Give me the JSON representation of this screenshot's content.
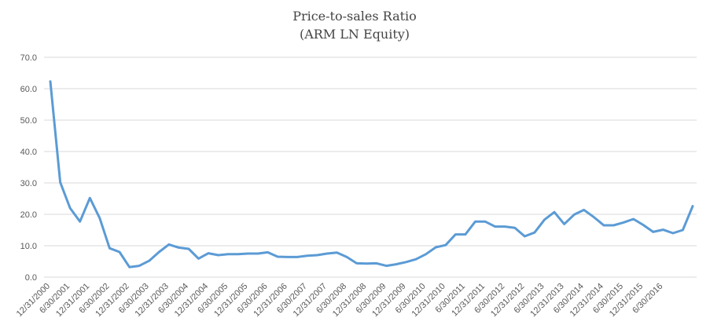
{
  "chart_data": {
    "type": "line",
    "title": "Price-to-sales Ratio",
    "subtitle": "(ARM LN Equity)",
    "xlabel": "",
    "ylabel": "",
    "ylim": [
      0,
      70
    ],
    "yticks": [
      0,
      10,
      20,
      30,
      40,
      50,
      60,
      70
    ],
    "ytick_labels": [
      "0.0",
      "10.0",
      "20.0",
      "30.0",
      "40.0",
      "50.0",
      "60.0",
      "70.0"
    ],
    "grid": true,
    "legend": "none",
    "x_tick_labels": [
      "12/31/2000",
      "6/30/2001",
      "12/31/2001",
      "6/30/2002",
      "12/31/2002",
      "6/30/2003",
      "12/31/2003",
      "6/30/2004",
      "12/31/2004",
      "6/30/2005",
      "12/31/2005",
      "6/30/2006",
      "12/31/2006",
      "6/30/2007",
      "12/31/2007",
      "6/30/2008",
      "12/31/2008",
      "6/30/2009",
      "12/31/2009",
      "6/30/2010",
      "12/31/2010",
      "6/30/2011",
      "12/31/2011",
      "6/30/2012",
      "12/31/2012",
      "6/30/2013",
      "12/31/2013",
      "6/30/2014",
      "12/31/2014",
      "6/30/2015",
      "12/31/2015",
      "6/30/2016"
    ],
    "series": [
      {
        "color": "#5b9bd5",
        "values": [
          62.3,
          30.2,
          22.0,
          17.7,
          25.2,
          18.8,
          9.2,
          8.0,
          3.2,
          3.6,
          5.2,
          8.0,
          10.4,
          9.4,
          9.0,
          5.9,
          7.6,
          7.0,
          7.3,
          7.3,
          7.5,
          7.5,
          7.9,
          6.5,
          6.4,
          6.4,
          6.8,
          7.0,
          7.5,
          7.8,
          6.4,
          4.4,
          4.3,
          4.4,
          3.6,
          4.1,
          4.8,
          5.7,
          7.3,
          9.5,
          10.2,
          13.6,
          13.6,
          17.7,
          17.7,
          16.1,
          16.1,
          15.7,
          13.0,
          14.2,
          18.3,
          20.7,
          16.9,
          19.9,
          21.4,
          19.1,
          16.5,
          16.5,
          17.4,
          18.5,
          16.6,
          14.4,
          15.1,
          14.0,
          15.0,
          22.6
        ]
      }
    ]
  }
}
